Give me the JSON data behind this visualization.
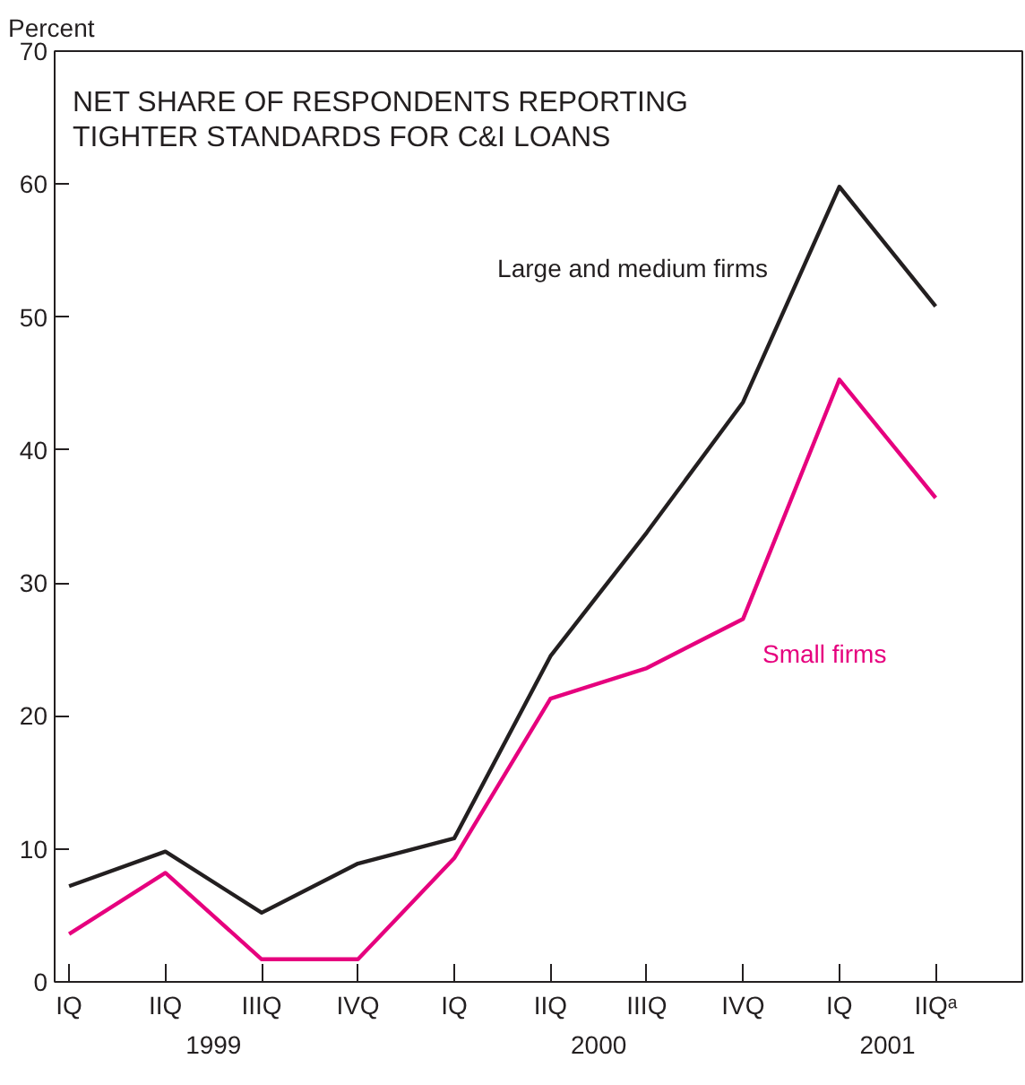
{
  "chart_data": {
    "type": "line",
    "title": "NET SHARE OF RESPONDENTS REPORTING\nTIGHTER STANDARDS FOR C&I LOANS",
    "ylabel": "Percent",
    "categories": [
      "IQ",
      "IIQ",
      "IIIQ",
      "IVQ",
      "IQ",
      "IIQ",
      "IIIQ",
      "IVQ",
      "IQ",
      "IIQᵃ"
    ],
    "series": [
      {
        "name": "Large and medium firms",
        "color": "#231f20",
        "values": [
          7.2,
          9.8,
          5.2,
          8.9,
          10.8,
          24.5,
          33.8,
          43.6,
          59.8,
          50.8
        ]
      },
      {
        "name": "Small firms",
        "color": "#e6007e",
        "values": [
          3.6,
          8.2,
          1.7,
          1.7,
          9.3,
          21.3,
          23.6,
          27.3,
          45.3,
          36.4
        ]
      }
    ],
    "ylim": [
      0,
      70
    ],
    "yticks": [
      0,
      10,
      20,
      30,
      40,
      50,
      60,
      70
    ],
    "annotations": [
      "1999",
      "2000",
      "2001"
    ],
    "grid": false,
    "legend": false,
    "marker": "none",
    "line_style": "solid"
  }
}
